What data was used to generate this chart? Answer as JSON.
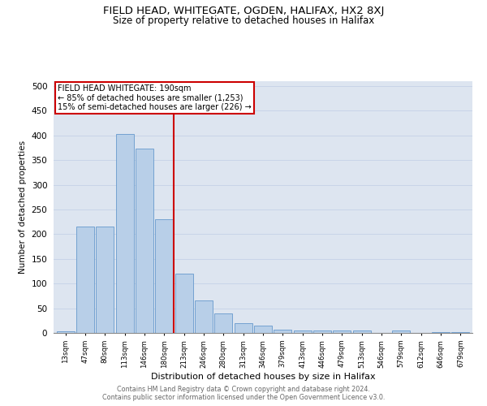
{
  "title": "FIELD HEAD, WHITEGATE, OGDEN, HALIFAX, HX2 8XJ",
  "subtitle": "Size of property relative to detached houses in Halifax",
  "xlabel": "Distribution of detached houses by size in Halifax",
  "ylabel": "Number of detached properties",
  "bar_values": [
    4,
    215,
    215,
    403,
    373,
    230,
    120,
    65,
    40,
    20,
    15,
    7,
    5,
    5,
    5,
    5,
    0,
    5,
    0,
    2,
    2
  ],
  "bar_labels": [
    "13sqm",
    "47sqm",
    "80sqm",
    "113sqm",
    "146sqm",
    "180sqm",
    "213sqm",
    "246sqm",
    "280sqm",
    "313sqm",
    "346sqm",
    "379sqm",
    "413sqm",
    "446sqm",
    "479sqm",
    "513sqm",
    "546sqm",
    "579sqm",
    "612sqm",
    "646sqm",
    "679sqm"
  ],
  "bar_color": "#b8cfe8",
  "bar_edge_color": "#6699cc",
  "property_line_x": 5.5,
  "property_line_color": "#cc0000",
  "annotation_box_color": "#cc0000",
  "annotation_text_line1": "FIELD HEAD WHITEGATE: 190sqm",
  "annotation_text_line2": "← 85% of detached houses are smaller (1,253)",
  "annotation_text_line3": "15% of semi-detached houses are larger (226) →",
  "ylim": [
    0,
    510
  ],
  "yticks": [
    0,
    50,
    100,
    150,
    200,
    250,
    300,
    350,
    400,
    450,
    500
  ],
  "grid_color": "#c8d4e8",
  "bg_color": "#dde5f0",
  "footer_line1": "Contains HM Land Registry data © Crown copyright and database right 2024.",
  "footer_line2": "Contains public sector information licensed under the Open Government Licence v3.0.",
  "title_fontsize": 9.5,
  "subtitle_fontsize": 8.5
}
